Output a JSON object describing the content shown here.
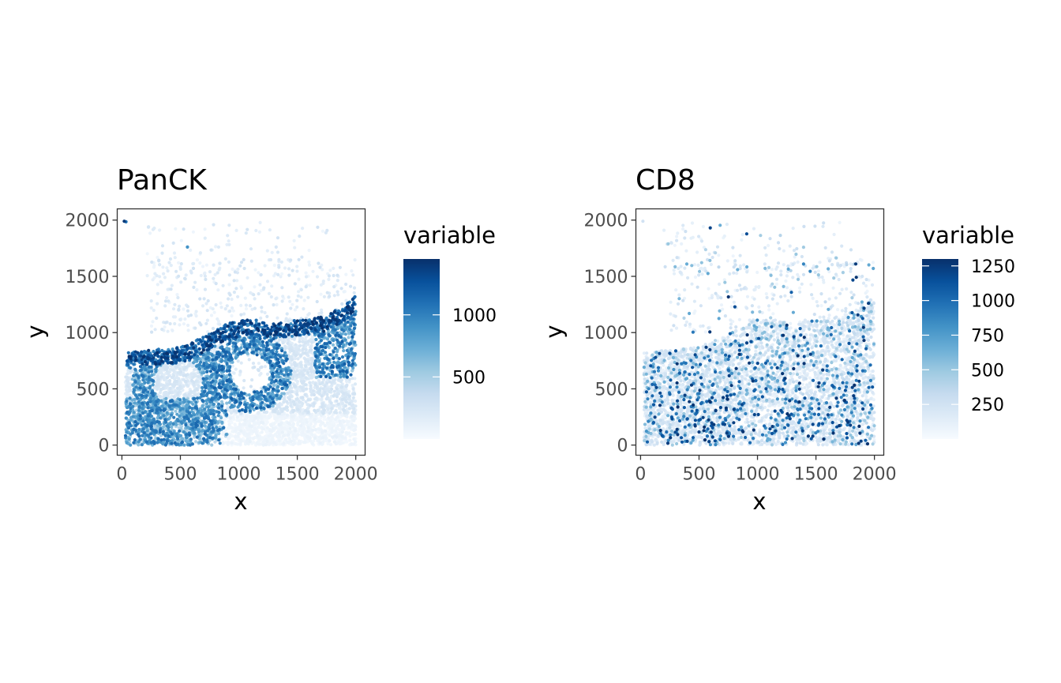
{
  "chart_data": [
    {
      "type": "scatter",
      "title": "PanCK",
      "xlabel": "x",
      "ylabel": "y",
      "xlim": [
        -40,
        2080
      ],
      "ylim": [
        -90,
        2100
      ],
      "x_ticks": [
        0,
        500,
        1000,
        1500,
        2000
      ],
      "y_ticks": [
        0,
        500,
        1000,
        1500,
        2000
      ],
      "grid": false,
      "legend": {
        "title": "variable",
        "placement": "right",
        "type": "colorbar",
        "range": [
          0,
          1450
        ],
        "ticks": [
          500,
          1000
        ],
        "color_low": "#f7fbff",
        "color_high": "#08306b"
      },
      "pattern": "panck",
      "seed": 11,
      "point_count": 5200
    },
    {
      "type": "scatter",
      "title": "CD8",
      "xlabel": "x",
      "ylabel": "y",
      "xlim": [
        -40,
        2080
      ],
      "ylim": [
        -90,
        2100
      ],
      "x_ticks": [
        0,
        500,
        1000,
        1500,
        2000
      ],
      "y_ticks": [
        0,
        500,
        1000,
        1500,
        2000
      ],
      "grid": false,
      "legend": {
        "title": "variable",
        "placement": "right",
        "type": "colorbar",
        "range": [
          0,
          1300
        ],
        "ticks": [
          250,
          500,
          750,
          1000,
          1250
        ],
        "color_low": "#f7fbff",
        "color_high": "#08306b"
      },
      "pattern": "cd8",
      "seed": 23,
      "point_count": 5200
    }
  ]
}
